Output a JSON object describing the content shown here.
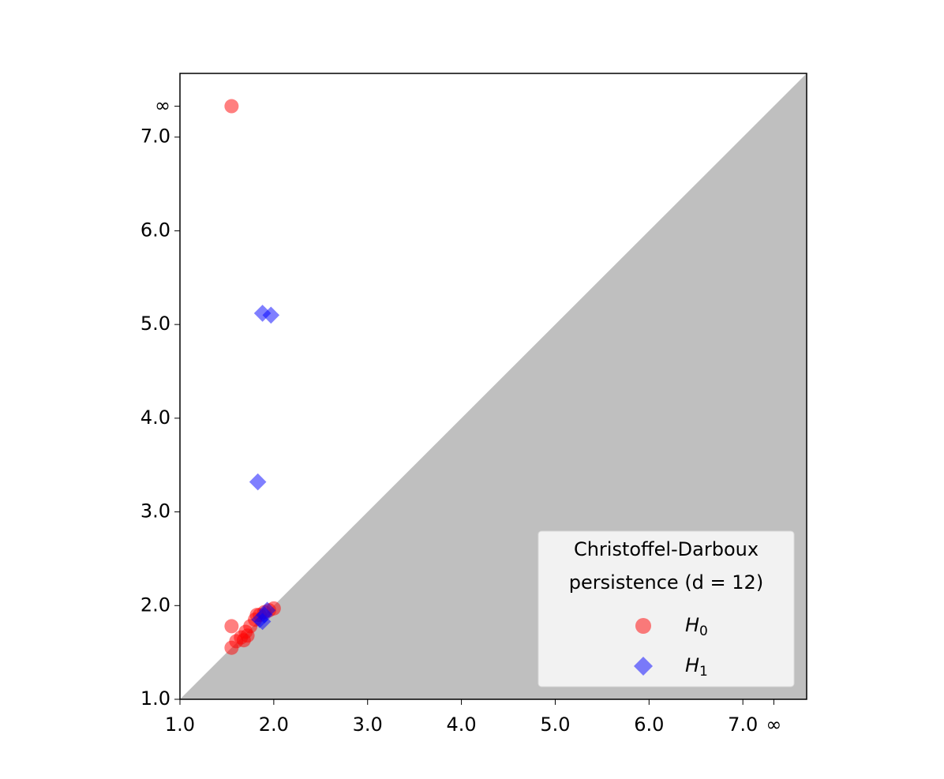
{
  "chart_data": {
    "type": "scatter",
    "xlim": [
      1,
      7.68
    ],
    "ylim": [
      1,
      7.68
    ],
    "xticks": [
      {
        "value": 1,
        "label": "1.0"
      },
      {
        "value": 2,
        "label": "2.0"
      },
      {
        "value": 3,
        "label": "3.0"
      },
      {
        "value": 4,
        "label": "4.0"
      },
      {
        "value": 5,
        "label": "5.0"
      },
      {
        "value": 6,
        "label": "6.0"
      },
      {
        "value": 7,
        "label": "7.0"
      },
      {
        "value": 7.33,
        "label": "∞"
      }
    ],
    "yticks": [
      {
        "value": 1,
        "label": "1.0"
      },
      {
        "value": 2,
        "label": "2.0"
      },
      {
        "value": 3,
        "label": "3.0"
      },
      {
        "value": 4,
        "label": "4.0"
      },
      {
        "value": 5,
        "label": "5.0"
      },
      {
        "value": 6,
        "label": "6.0"
      },
      {
        "value": 7,
        "label": "7.0"
      },
      {
        "value": 7.33,
        "label": "∞"
      }
    ],
    "legend_title": [
      "Christoffel-Darboux",
      "persistence (d = 12)"
    ],
    "legend_position": "lower right",
    "diagonal_fill": "#bfbfbf",
    "series": [
      {
        "name": "H0",
        "color": "#ff0000",
        "marker": "circle",
        "x": [
          1.55,
          1.55,
          1.55,
          1.6,
          1.65,
          1.7,
          1.75,
          1.8,
          1.85,
          1.9,
          1.95,
          2.0,
          1.72,
          1.68,
          1.82
        ],
        "y": [
          7.33,
          1.78,
          1.55,
          1.62,
          1.66,
          1.72,
          1.78,
          1.85,
          1.9,
          1.93,
          1.95,
          1.97,
          1.68,
          1.63,
          1.9
        ]
      },
      {
        "name": "H1",
        "color": "#0000ff",
        "marker": "diamond",
        "x": [
          1.88,
          1.97,
          1.83,
          1.85,
          1.9,
          1.93,
          1.88
        ],
        "y": [
          5.12,
          5.1,
          3.32,
          1.85,
          1.9,
          1.95,
          1.83
        ]
      }
    ]
  }
}
